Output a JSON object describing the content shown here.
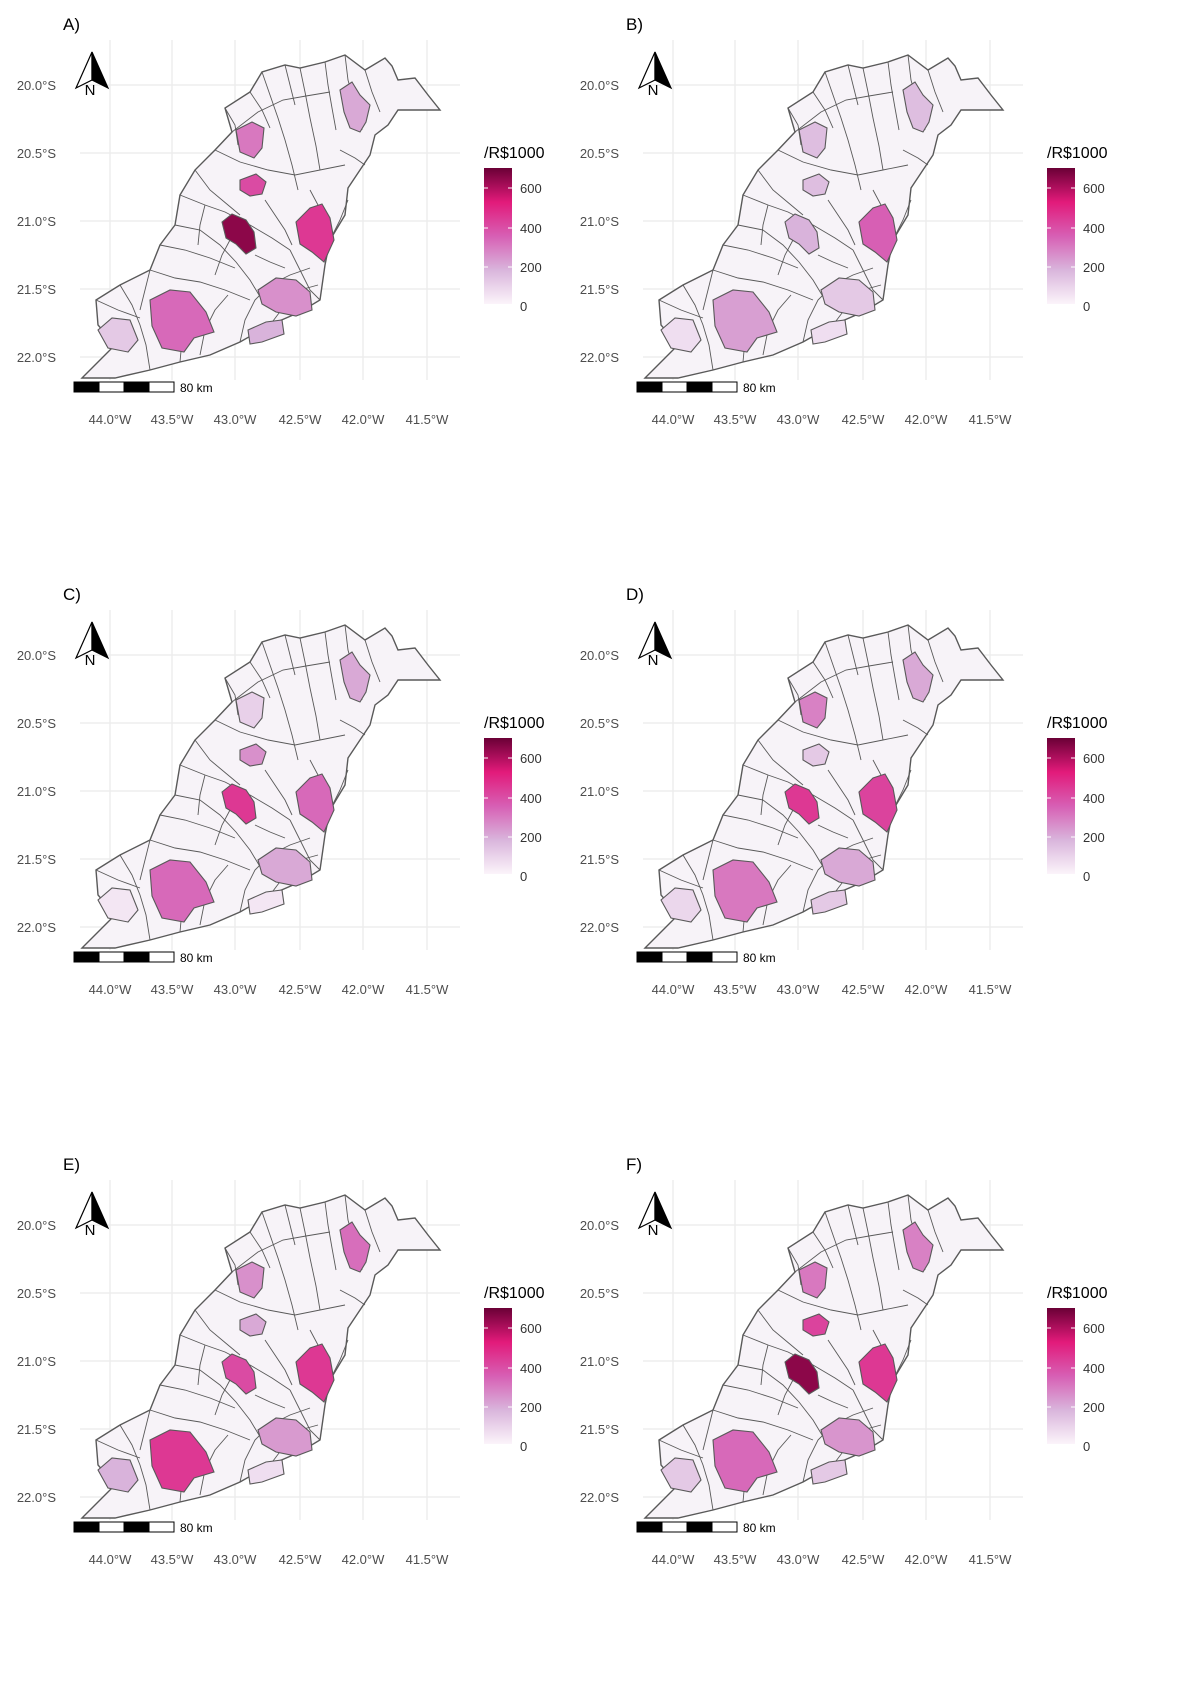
{
  "figure": {
    "legend_title": "/R$1000",
    "legend_ticks": [
      "600",
      "400",
      "200",
      "0"
    ],
    "legend_colors": [
      "#fbf4fa",
      "#d9b5dc",
      "#d75fb4",
      "#e21a7a",
      "#6a0036"
    ],
    "scale_bar_label": "80 km",
    "north_label": "N",
    "lat_ticks": [
      "20.0°S",
      "20.5°S",
      "21.0°S",
      "21.5°S",
      "22.0°S"
    ],
    "lon_ticks": [
      "44.0°W",
      "43.5°W",
      "43.0°W",
      "42.5°W",
      "42.0°W",
      "41.5°W"
    ],
    "boundary_color": "#595959",
    "grid_color": "#ebebeb"
  },
  "panels": [
    {
      "label": "A)",
      "regions": [
        {
          "name": "north-east",
          "value": 200
        },
        {
          "name": "north-central",
          "value": 300
        },
        {
          "name": "central-upper",
          "value": 400
        },
        {
          "name": "central-core",
          "value": 650
        },
        {
          "name": "east-central",
          "value": 450
        },
        {
          "name": "south-central",
          "value": 250
        },
        {
          "name": "south-west",
          "value": 330
        },
        {
          "name": "west",
          "value": 120
        },
        {
          "name": "south-east",
          "value": 180
        }
      ]
    },
    {
      "label": "B)",
      "regions": [
        {
          "name": "north-east",
          "value": 150
        },
        {
          "name": "north-central",
          "value": 150
        },
        {
          "name": "central-upper",
          "value": 150
        },
        {
          "name": "central-core",
          "value": 180
        },
        {
          "name": "east-central",
          "value": 350
        },
        {
          "name": "south-central",
          "value": 120
        },
        {
          "name": "south-west",
          "value": 220
        },
        {
          "name": "west",
          "value": 60
        },
        {
          "name": "south-east",
          "value": 60
        }
      ]
    },
    {
      "label": "C)",
      "regions": [
        {
          "name": "north-east",
          "value": 200
        },
        {
          "name": "north-central",
          "value": 100
        },
        {
          "name": "central-upper",
          "value": 250
        },
        {
          "name": "central-core",
          "value": 450
        },
        {
          "name": "east-central",
          "value": 330
        },
        {
          "name": "south-central",
          "value": 200
        },
        {
          "name": "south-west",
          "value": 330
        },
        {
          "name": "west",
          "value": 40
        },
        {
          "name": "south-east",
          "value": 40
        }
      ]
    },
    {
      "label": "D)",
      "regions": [
        {
          "name": "north-east",
          "value": 200
        },
        {
          "name": "north-central",
          "value": 280
        },
        {
          "name": "central-upper",
          "value": 120
        },
        {
          "name": "central-core",
          "value": 450
        },
        {
          "name": "east-central",
          "value": 420
        },
        {
          "name": "south-central",
          "value": 200
        },
        {
          "name": "south-west",
          "value": 300
        },
        {
          "name": "west",
          "value": 80
        },
        {
          "name": "south-east",
          "value": 120
        }
      ]
    },
    {
      "label": "E)",
      "regions": [
        {
          "name": "north-east",
          "value": 320
        },
        {
          "name": "north-central",
          "value": 250
        },
        {
          "name": "central-upper",
          "value": 200
        },
        {
          "name": "central-core",
          "value": 400
        },
        {
          "name": "east-central",
          "value": 450
        },
        {
          "name": "south-central",
          "value": 230
        },
        {
          "name": "south-west",
          "value": 450
        },
        {
          "name": "west",
          "value": 180
        },
        {
          "name": "south-east",
          "value": 60
        }
      ]
    },
    {
      "label": "F)",
      "regions": [
        {
          "name": "north-east",
          "value": 280
        },
        {
          "name": "north-central",
          "value": 300
        },
        {
          "name": "central-upper",
          "value": 420
        },
        {
          "name": "central-core",
          "value": 650
        },
        {
          "name": "east-central",
          "value": 450
        },
        {
          "name": "south-central",
          "value": 240
        },
        {
          "name": "south-west",
          "value": 330
        },
        {
          "name": "west",
          "value": 120
        },
        {
          "name": "south-east",
          "value": 120
        }
      ]
    }
  ]
}
